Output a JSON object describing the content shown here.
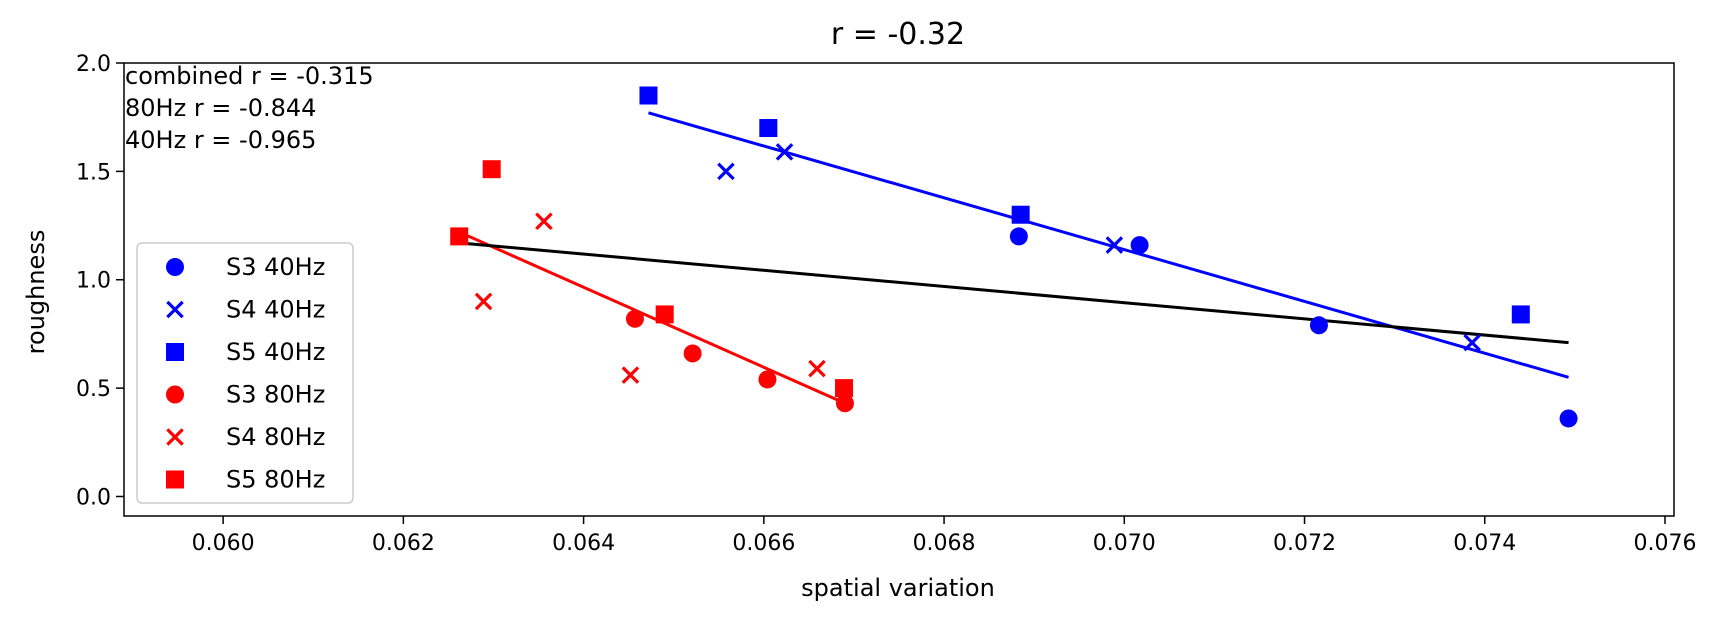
{
  "chart_data": {
    "type": "scatter",
    "title": "r = -0.32",
    "xlabel": "spatial variation",
    "ylabel": "roughness",
    "xlim": [
      0.0589,
      0.0761
    ],
    "ylim": [
      -0.09,
      2.0
    ],
    "xticks": [
      0.06,
      0.062,
      0.064,
      0.066,
      0.068,
      0.07,
      0.072,
      0.074,
      0.076
    ],
    "xtick_labels": [
      "0.060",
      "0.062",
      "0.064",
      "0.066",
      "0.068",
      "0.070",
      "0.072",
      "0.074",
      "0.076"
    ],
    "yticks": [
      0.0,
      0.5,
      1.0,
      1.5,
      2.0
    ],
    "ytick_labels": [
      "0.0",
      "0.5",
      "1.0",
      "1.5",
      "2.0"
    ],
    "grid": false,
    "legend_position": "lower-left",
    "annotations": [
      "combined r = -0.315",
      "80Hz r = -0.844",
      "40Hz r = -0.965"
    ],
    "series": [
      {
        "name": "S3 40Hz",
        "marker": "circle",
        "color": "#0000ff",
        "points": [
          [
            0.06883,
            1.2
          ],
          [
            0.07017,
            1.16
          ],
          [
            0.07216,
            0.79
          ],
          [
            0.07493,
            0.36
          ]
        ]
      },
      {
        "name": "S4 40Hz",
        "marker": "x",
        "color": "#0000ff",
        "points": [
          [
            0.06558,
            1.5
          ],
          [
            0.06623,
            1.59
          ],
          [
            0.06989,
            1.16
          ],
          [
            0.07386,
            0.71
          ]
        ]
      },
      {
        "name": "S5 40Hz",
        "marker": "square",
        "color": "#0000ff",
        "points": [
          [
            0.06472,
            1.85
          ],
          [
            0.06605,
            1.7
          ],
          [
            0.06885,
            1.3
          ],
          [
            0.0744,
            0.84
          ]
        ]
      },
      {
        "name": "S3 80Hz",
        "marker": "circle",
        "color": "#ff0000",
        "points": [
          [
            0.06457,
            0.82
          ],
          [
            0.06521,
            0.66
          ],
          [
            0.06604,
            0.54
          ],
          [
            0.0669,
            0.43
          ]
        ]
      },
      {
        "name": "S4 80Hz",
        "marker": "x",
        "color": "#ff0000",
        "points": [
          [
            0.06289,
            0.9
          ],
          [
            0.06356,
            1.27
          ],
          [
            0.06452,
            0.56
          ],
          [
            0.06659,
            0.59
          ]
        ]
      },
      {
        "name": "S5 80Hz",
        "marker": "square",
        "color": "#ff0000",
        "points": [
          [
            0.06262,
            1.2
          ],
          [
            0.06298,
            1.51
          ],
          [
            0.0649,
            0.84
          ],
          [
            0.06689,
            0.5
          ]
        ]
      }
    ],
    "fit_lines": [
      {
        "id": "fit-40hz",
        "color": "#0000ff",
        "points": [
          [
            0.06472,
            1.77
          ],
          [
            0.07493,
            0.55
          ]
        ]
      },
      {
        "id": "fit-80hz",
        "color": "#ff0000",
        "points": [
          [
            0.06262,
            1.22
          ],
          [
            0.0669,
            0.43
          ]
        ]
      },
      {
        "id": "fit-combined",
        "color": "#000000",
        "points": [
          [
            0.06262,
            1.17
          ],
          [
            0.07493,
            0.71
          ]
        ]
      }
    ]
  }
}
